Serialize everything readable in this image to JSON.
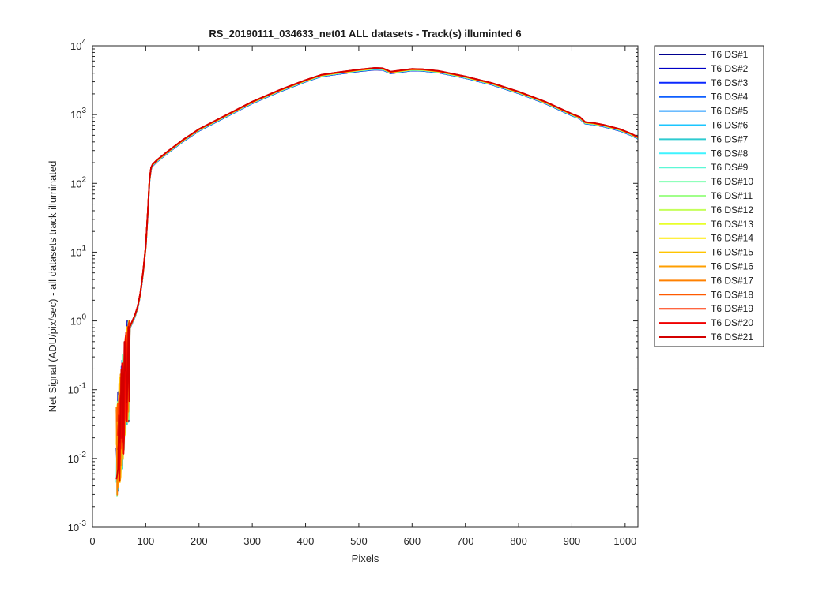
{
  "chart_data": {
    "type": "line",
    "title": "RS_20190111_034633_net01 ALL datasets - Track(s) illuminted 6",
    "xlabel": "Pixels",
    "ylabel": "Net Signal (ADU/pix/sec) - all datasets track illuminated",
    "x_scale": "linear",
    "y_scale": "log",
    "xlim": [
      0,
      1024
    ],
    "ylim": [
      0.001,
      10000
    ],
    "x_ticks": [
      "0",
      "100",
      "200",
      "300",
      "400",
      "500",
      "600",
      "700",
      "800",
      "900",
      "1000"
    ],
    "x_tick_values": [
      0,
      100,
      200,
      300,
      400,
      500,
      600,
      700,
      800,
      900,
      1000
    ],
    "y_ticks": [
      {
        "base": "10",
        "exp": "-3",
        "value": 0.001
      },
      {
        "base": "10",
        "exp": "-2",
        "value": 0.01
      },
      {
        "base": "10",
        "exp": "-1",
        "value": 0.1
      },
      {
        "base": "10",
        "exp": "0",
        "value": 1
      },
      {
        "base": "10",
        "exp": "1",
        "value": 10
      },
      {
        "base": "10",
        "exp": "2",
        "value": 100
      },
      {
        "base": "10",
        "exp": "3",
        "value": 1000
      },
      {
        "base": "10",
        "exp": "4",
        "value": 10000
      }
    ],
    "grid": false,
    "legend_position": "outside-right",
    "common_curve": {
      "x": [
        70,
        80,
        85,
        90,
        95,
        100,
        104,
        107,
        110,
        113,
        120,
        140,
        170,
        200,
        250,
        300,
        350,
        400,
        430,
        460,
        500,
        530,
        545,
        560,
        580,
        600,
        620,
        650,
        700,
        750,
        800,
        850,
        900,
        915,
        925,
        940,
        960,
        990,
        1010,
        1024
      ],
      "y": [
        0.8,
        1.2,
        1.6,
        2.5,
        5,
        12,
        40,
        110,
        165,
        185,
        210,
        280,
        420,
        600,
        950,
        1500,
        2200,
        3100,
        3700,
        4000,
        4400,
        4650,
        4600,
        4100,
        4300,
        4500,
        4450,
        4200,
        3500,
        2800,
        2100,
        1500,
        1000,
        900,
        760,
        740,
        690,
        600,
        520,
        460
      ]
    },
    "noisy_region": {
      "x_start": 45,
      "x_end": 80,
      "y_min": 0.0015,
      "y_max": 1.0
    },
    "series": [
      {
        "name": "T6 DS#1",
        "color": "#00008f"
      },
      {
        "name": "T6 DS#2",
        "color": "#0000c6"
      },
      {
        "name": "T6 DS#3",
        "color": "#0a28ff"
      },
      {
        "name": "T6 DS#4",
        "color": "#0f5fff"
      },
      {
        "name": "T6 DS#5",
        "color": "#1594ff"
      },
      {
        "name": "T6 DS#6",
        "color": "#1bc6ff"
      },
      {
        "name": "T6 DS#7",
        "color": "#2ecbd0"
      },
      {
        "name": "T6 DS#8",
        "color": "#3ff3ff"
      },
      {
        "name": "T6 DS#9",
        "color": "#5cf8d6"
      },
      {
        "name": "T6 DS#10",
        "color": "#7fffb0"
      },
      {
        "name": "T6 DS#11",
        "color": "#a0ff8a"
      },
      {
        "name": "T6 DS#12",
        "color": "#c4ff5a"
      },
      {
        "name": "T6 DS#13",
        "color": "#e8ff2a"
      },
      {
        "name": "T6 DS#14",
        "color": "#ffea00"
      },
      {
        "name": "T6 DS#15",
        "color": "#ffc400"
      },
      {
        "name": "T6 DS#16",
        "color": "#ff9f00"
      },
      {
        "name": "T6 DS#17",
        "color": "#ff8000"
      },
      {
        "name": "T6 DS#18",
        "color": "#ff5a00"
      },
      {
        "name": "T6 DS#19",
        "color": "#ff3200"
      },
      {
        "name": "T6 DS#20",
        "color": "#f00000"
      },
      {
        "name": "T6 DS#21",
        "color": "#d40000"
      }
    ]
  }
}
